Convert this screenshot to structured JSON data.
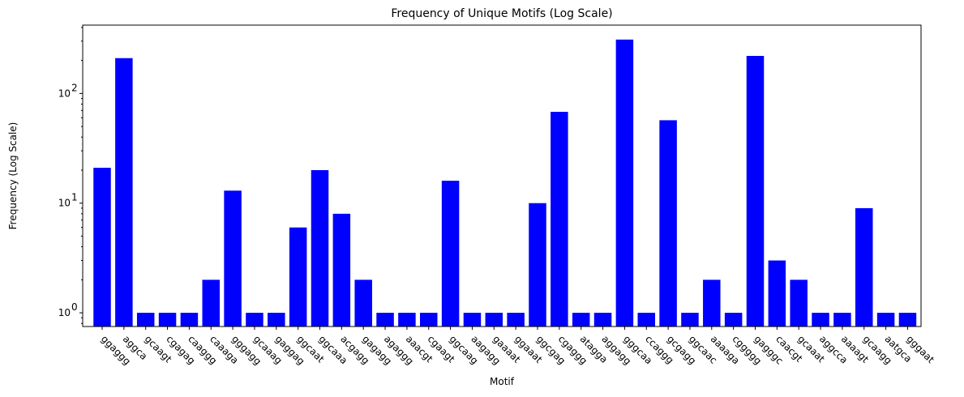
{
  "chart_data": {
    "type": "bar",
    "title": "Frequency of Unique Motifs (Log Scale)",
    "xlabel": "Motif",
    "ylabel": "Frequency (Log Scale)",
    "yscale": "log",
    "ylim": [
      0.75,
      420
    ],
    "yticks": [
      {
        "value": 1,
        "base": "10",
        "exp": "0"
      },
      {
        "value": 10,
        "base": "10",
        "exp": "1"
      },
      {
        "value": 100,
        "base": "10",
        "exp": "2"
      }
    ],
    "bar_color": "#0000ff",
    "grid": false,
    "categories": [
      "ggaggg",
      "aggca",
      "gcaagt",
      "cgagag",
      "caaggg",
      "caaaga",
      "gggagg",
      "gcaaag",
      "gaggag",
      "ggcaat",
      "ggcaaa",
      "acgagg",
      "gagagg",
      "agaggg",
      "aaacgt",
      "cgaagt",
      "ggcaag",
      "aagagg",
      "gaaaat",
      "ggaaat",
      "ggcgag",
      "cgaggg",
      "atagga",
      "aggagg",
      "gggcaa",
      "ccaggg",
      "gcgagg",
      "ggcaac",
      "aaaaga",
      "cggggg",
      "gagggc",
      "caacgt",
      "gcaaat",
      "aggcca",
      "aaaagt",
      "gcaagg",
      "aatgca",
      "gggaat"
    ],
    "values": [
      21,
      210,
      1,
      1,
      1,
      2,
      13,
      1,
      1,
      6,
      20,
      8,
      2,
      1,
      1,
      1,
      16,
      1,
      1,
      1,
      10,
      68,
      1,
      1,
      310,
      1,
      57,
      1,
      2,
      1,
      220,
      3,
      2,
      1,
      1,
      9,
      1,
      1
    ]
  }
}
